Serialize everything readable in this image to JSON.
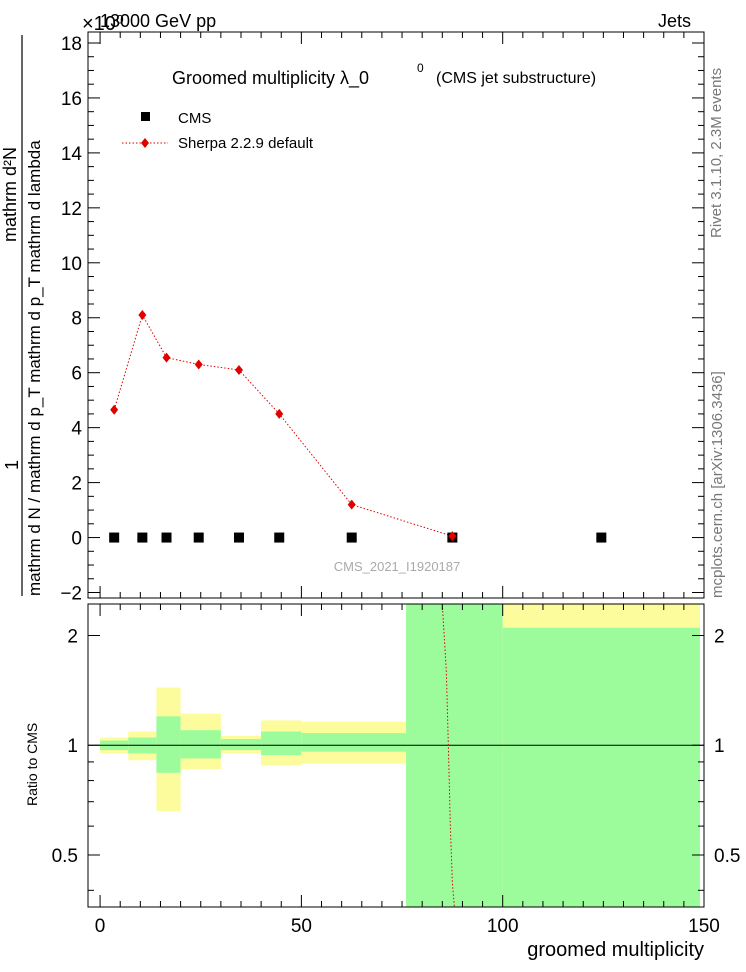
{
  "header": {
    "energy": "13000 GeV pp",
    "process": "Jets",
    "exponent": "×10⁰",
    "rivet_label": "Rivet 3.1.10,  2.3M events",
    "mcplots_label": "mcplots.cern.ch [arXiv:1306.3436]",
    "analysis_id": "CMS_2021_I1920187"
  },
  "chart_data": [
    {
      "type": "scatter",
      "panel": "main",
      "title_main": "Groomed multiplicity  λ_0",
      "title_sup": "0",
      "title_suffix": "(CMS jet substructure)",
      "ylabel_numerator": "1",
      "ylabel_denominator": "mathrm d N / mathrm d p_T mathrm d p_T mathrm d lambda",
      "ylabel_top": "mathrm d²N",
      "xlim": [
        -3,
        150
      ],
      "ylim": [
        -2.2,
        18.4
      ],
      "yticks": [
        -2,
        0,
        2,
        4,
        6,
        8,
        10,
        12,
        14,
        16,
        18
      ],
      "series": [
        {
          "name": "CMS",
          "color": "#000000",
          "marker": "square",
          "x": [
            3.5,
            10.5,
            16.5,
            24.5,
            34.5,
            44.5,
            62.5,
            87.5,
            124.5
          ],
          "y": [
            0,
            0,
            0,
            0,
            0,
            0,
            0,
            0,
            0
          ]
        },
        {
          "name": "Sherpa 2.2.9 default",
          "color": "#e00000",
          "marker": "diamond",
          "line": "dotted",
          "x": [
            3.5,
            10.5,
            16.5,
            24.5,
            34.5,
            44.5,
            62.5,
            87.5
          ],
          "y": [
            4.65,
            8.1,
            6.55,
            6.3,
            6.1,
            4.5,
            1.2,
            0.05
          ]
        }
      ]
    },
    {
      "type": "area",
      "panel": "ratio",
      "ylabel": "Ratio to CMS",
      "xlabel": "groomed multiplicity",
      "xlim": [
        -3,
        150
      ],
      "xticks": [
        0,
        50,
        100,
        150
      ],
      "yticks": [
        0.5,
        1,
        2
      ],
      "yscale": "log",
      "ylim": [
        0.36,
        2.44
      ],
      "bands": [
        {
          "x0": 0,
          "x1": 7,
          "stat_lo": 0.97,
          "stat_hi": 1.03,
          "tot_lo": 0.95,
          "tot_hi": 1.05
        },
        {
          "x0": 7,
          "x1": 14,
          "stat_lo": 0.95,
          "stat_hi": 1.05,
          "tot_lo": 0.91,
          "tot_hi": 1.09
        },
        {
          "x0": 14,
          "x1": 20,
          "stat_lo": 0.84,
          "stat_hi": 1.2,
          "tot_lo": 0.66,
          "tot_hi": 1.44
        },
        {
          "x0": 20,
          "x1": 30,
          "stat_lo": 0.92,
          "stat_hi": 1.1,
          "tot_lo": 0.86,
          "tot_hi": 1.22
        },
        {
          "x0": 30,
          "x1": 40,
          "stat_lo": 0.97,
          "stat_hi": 1.04,
          "tot_lo": 0.95,
          "tot_hi": 1.06
        },
        {
          "x0": 40,
          "x1": 50,
          "stat_lo": 0.94,
          "stat_hi": 1.09,
          "tot_lo": 0.88,
          "tot_hi": 1.17
        },
        {
          "x0": 50,
          "x1": 76,
          "stat_lo": 0.96,
          "stat_hi": 1.08,
          "tot_lo": 0.89,
          "tot_hi": 1.16
        },
        {
          "x0": 76,
          "x1": 100,
          "stat_lo": 0.36,
          "stat_hi": 2.44,
          "tot_lo": 0.36,
          "tot_hi": 2.44
        },
        {
          "x0": 100,
          "x1": 149,
          "stat_lo": 0.36,
          "stat_hi": 2.1,
          "tot_lo": 0.36,
          "tot_hi": 2.44
        }
      ],
      "sherpa_ratio": {
        "name": "Sherpa 2.2.9 default",
        "color": "#e00000",
        "x": [
          85,
          86,
          86.5,
          87,
          87.5,
          88
        ],
        "y": [
          2.44,
          1.6,
          1.0,
          0.6,
          0.42,
          0.36
        ]
      },
      "stat_color": "#9cfc9c",
      "total_color": "#fcfc9c"
    }
  ]
}
